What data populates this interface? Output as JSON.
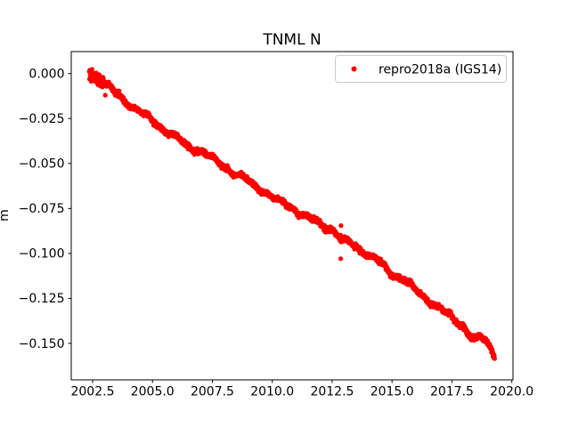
{
  "chart_data": {
    "type": "scatter",
    "title": "TNML N",
    "xlabel": "",
    "ylabel": "m",
    "grid": false,
    "xlim": [
      2001.608,
      2020.049
    ],
    "ylim": [
      -0.17028,
      0.01222
    ],
    "xticks": [
      2002.5,
      2005.0,
      2007.5,
      2010.0,
      2012.5,
      2015.0,
      2017.5,
      2020.0
    ],
    "xtick_labels": [
      "2002.5",
      "2005.0",
      "2007.5",
      "2010.0",
      "2012.5",
      "2015.0",
      "2017.5",
      "2020.0"
    ],
    "yticks": [
      0.0,
      -0.025,
      -0.05,
      -0.075,
      -0.1,
      -0.125,
      -0.15
    ],
    "ytick_labels": [
      "0.000",
      "−0.025",
      "−0.050",
      "−0.075",
      "−0.100",
      "−0.125",
      "−0.150"
    ],
    "legend": {
      "position": "upper right",
      "border_color": "#cccccc",
      "background_color": "#ffffff",
      "entries": [
        {
          "label": "repro2018a (IGS14)",
          "marker": "dot",
          "color": "#ff0000"
        }
      ]
    },
    "series": [
      {
        "name": "repro2018a (IGS14)",
        "color": "#ff0000",
        "marker": "point",
        "x_range": [
          2002.36,
          2019.28
        ],
        "trend_waypoints": [
          [
            2002.38,
            0.001
          ],
          [
            2002.6,
            -0.0015
          ],
          [
            2003.0,
            -0.0055
          ],
          [
            2003.5,
            -0.0115
          ],
          [
            2004.0,
            -0.0165
          ],
          [
            2004.5,
            -0.0215
          ],
          [
            2005.0,
            -0.026
          ],
          [
            2005.5,
            -0.0315
          ],
          [
            2006.0,
            -0.0355
          ],
          [
            2006.45,
            -0.0405
          ],
          [
            2006.8,
            -0.042
          ],
          [
            2007.1,
            -0.0435
          ],
          [
            2007.4,
            -0.0465
          ],
          [
            2007.8,
            -0.05
          ],
          [
            2008.3,
            -0.0545
          ],
          [
            2008.8,
            -0.058
          ],
          [
            2009.3,
            -0.0625
          ],
          [
            2009.8,
            -0.0665
          ],
          [
            2010.2,
            -0.0705
          ],
          [
            2010.7,
            -0.0735
          ],
          [
            2011.2,
            -0.078
          ],
          [
            2011.7,
            -0.0815
          ],
          [
            2012.1,
            -0.0845
          ],
          [
            2012.45,
            -0.086
          ],
          [
            2012.7,
            -0.089
          ],
          [
            2012.9,
            -0.093
          ],
          [
            2013.2,
            -0.094
          ],
          [
            2013.6,
            -0.097
          ],
          [
            2014.0,
            -0.1005
          ],
          [
            2014.45,
            -0.1045
          ],
          [
            2014.85,
            -0.11
          ],
          [
            2015.2,
            -0.1125
          ],
          [
            2015.6,
            -0.115
          ],
          [
            2015.95,
            -0.1205
          ],
          [
            2016.3,
            -0.124
          ],
          [
            2016.85,
            -0.129
          ],
          [
            2017.1,
            -0.1315
          ],
          [
            2017.35,
            -0.134
          ],
          [
            2017.6,
            -0.1372
          ],
          [
            2017.95,
            -0.1395
          ],
          [
            2018.2,
            -0.1446
          ],
          [
            2018.45,
            -0.148
          ],
          [
            2018.7,
            -0.147
          ],
          [
            2018.95,
            -0.149
          ],
          [
            2019.1,
            -0.1525
          ],
          [
            2019.28,
            -0.157
          ]
        ],
        "outliers": [
          [
            2003.03,
            -0.012
          ],
          [
            2012.87,
            -0.0845
          ],
          [
            2012.86,
            -0.0898
          ],
          [
            2012.86,
            -0.1029
          ]
        ],
        "render_hints": {
          "points_per_year": 155,
          "noise_sigma_m": 0.00065,
          "early_noise": {
            "until": 2003.0,
            "sigma_m": 0.0016
          },
          "wiggles": [
            {
              "amp_m": 0.001,
              "period_yr": 1.4,
              "phase": 2.0
            },
            {
              "amp_m": 0.0006,
              "period_yr": 0.55,
              "phase": 0.8
            }
          ],
          "marker_radius_px": 2.6,
          "seed": 42
        }
      }
    ]
  }
}
